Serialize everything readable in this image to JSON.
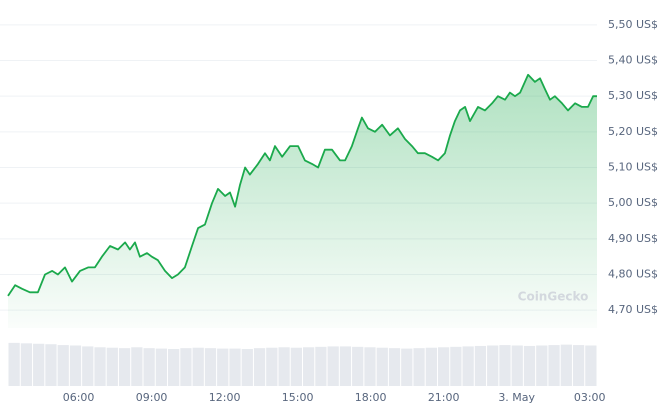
{
  "chart_data": [
    {
      "type": "line",
      "color": "#1ba94c",
      "watermark": "CoinGecko",
      "x": [
        3.1,
        3.39,
        3.68,
        4.0,
        4.33,
        4.62,
        4.91,
        5.15,
        5.44,
        5.73,
        6.06,
        6.39,
        6.67,
        6.96,
        7.29,
        7.62,
        7.91,
        8.11,
        8.32,
        8.52,
        8.81,
        9.01,
        9.26,
        9.55,
        9.84,
        10.08,
        10.37,
        10.66,
        10.91,
        11.19,
        11.48,
        11.73,
        12.02,
        12.22,
        12.43,
        12.63,
        12.84,
        13.04,
        13.37,
        13.66,
        13.86,
        14.07,
        14.36,
        14.69,
        15.02,
        15.3,
        15.59,
        15.84,
        16.12,
        16.41,
        16.74,
        16.95,
        17.23,
        17.48,
        17.64,
        17.89,
        18.18,
        18.47,
        18.79,
        19.12,
        19.41,
        19.7,
        19.94,
        20.23,
        20.52,
        20.77,
        21.05,
        21.26,
        21.46,
        21.67,
        21.88,
        22.08,
        22.41,
        22.7,
        22.99,
        23.23,
        23.52,
        23.72,
        23.93,
        24.14,
        24.47,
        24.75,
        24.96,
        25.16,
        25.37,
        25.57,
        25.86,
        26.11,
        26.4,
        26.68,
        26.93,
        27.14,
        27.3
      ],
      "values": [
        4.74,
        4.77,
        4.76,
        4.75,
        4.75,
        4.8,
        4.81,
        4.8,
        4.82,
        4.78,
        4.81,
        4.82,
        4.82,
        4.85,
        4.88,
        4.87,
        4.89,
        4.87,
        4.89,
        4.85,
        4.86,
        4.85,
        4.84,
        4.81,
        4.79,
        4.8,
        4.82,
        4.88,
        4.93,
        4.94,
        5.0,
        5.04,
        5.02,
        5.03,
        4.99,
        5.05,
        5.1,
        5.08,
        5.11,
        5.14,
        5.12,
        5.16,
        5.13,
        5.16,
        5.16,
        5.12,
        5.11,
        5.1,
        5.15,
        5.15,
        5.12,
        5.12,
        5.16,
        5.21,
        5.24,
        5.21,
        5.2,
        5.22,
        5.19,
        5.21,
        5.18,
        5.16,
        5.14,
        5.14,
        5.13,
        5.12,
        5.14,
        5.19,
        5.23,
        5.26,
        5.27,
        5.23,
        5.27,
        5.26,
        5.28,
        5.3,
        5.29,
        5.31,
        5.3,
        5.31,
        5.36,
        5.34,
        5.35,
        5.32,
        5.29,
        5.3,
        5.28,
        5.26,
        5.28,
        5.27,
        5.27,
        5.3,
        5.3
      ],
      "xlim": [
        3.1,
        27.3
      ],
      "xticks": [
        {
          "value": 6,
          "label": "06:00"
        },
        {
          "value": 9,
          "label": "09:00"
        },
        {
          "value": 12,
          "label": "12:00"
        },
        {
          "value": 15,
          "label": "15:00"
        },
        {
          "value": 18,
          "label": "18:00"
        },
        {
          "value": 21,
          "label": "21:00"
        },
        {
          "value": 24,
          "label": "3. May"
        },
        {
          "value": 27,
          "label": "03:00"
        }
      ],
      "ylim": [
        4.65,
        5.55
      ],
      "yticks": [
        {
          "value": 4.7,
          "label": "4,70 US$"
        },
        {
          "value": 4.8,
          "label": "4,80 US$"
        },
        {
          "value": 4.9,
          "label": "4,90 US$"
        },
        {
          "value": 5.0,
          "label": "5,00 US$"
        },
        {
          "value": 5.1,
          "label": "5,10 US$"
        },
        {
          "value": 5.2,
          "label": "5,20 US$"
        },
        {
          "value": 5.3,
          "label": "5,30 US$"
        },
        {
          "value": 5.4,
          "label": "5,40 US$"
        },
        {
          "value": 5.5,
          "label": "5,50 US$"
        }
      ],
      "grid": true
    },
    {
      "type": "bar",
      "color": "#e6e9ee",
      "values": [
        98,
        97,
        96,
        95,
        93,
        92,
        90,
        88,
        87,
        86,
        88,
        86,
        85,
        84,
        86,
        87,
        86,
        85,
        85,
        84,
        86,
        87,
        88,
        87,
        88,
        89,
        90,
        90,
        89,
        88,
        87,
        86,
        85,
        86,
        87,
        88,
        89,
        90,
        91,
        92,
        93,
        92,
        91,
        92,
        93,
        94,
        93,
        92
      ],
      "ylim": [
        0,
        100
      ]
    }
  ]
}
